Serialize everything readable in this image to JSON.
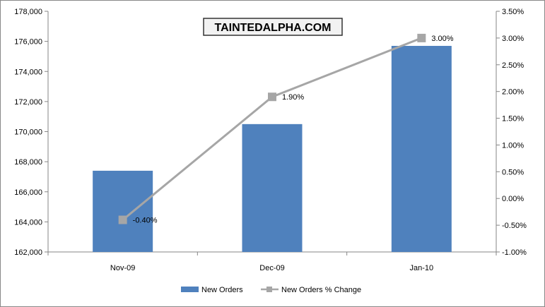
{
  "chart_data": {
    "type": "bar",
    "categories": [
      "Nov-09",
      "Dec-09",
      "Jan-10"
    ],
    "series": [
      {
        "name": "New Orders",
        "type": "bar",
        "axis": "left",
        "values": [
          167400,
          170500,
          175700
        ],
        "color": "#4f81bd"
      },
      {
        "name": "New Orders % Change",
        "type": "line",
        "axis": "right",
        "values": [
          -0.4,
          1.9,
          3.0
        ],
        "color": "#a6a6a6"
      }
    ],
    "data_labels": [
      "-0.40%",
      "1.90%",
      "3.00%"
    ],
    "left_axis": {
      "ylim": [
        162000,
        178000
      ],
      "ticks": [
        "162,000",
        "164,000",
        "166,000",
        "168,000",
        "170,000",
        "172,000",
        "174,000",
        "176,000",
        "178,000"
      ]
    },
    "right_axis": {
      "ylim": [
        -1.0,
        3.5
      ],
      "ticks": [
        "-1.00%",
        "-0.50%",
        "0.00%",
        "0.50%",
        "1.00%",
        "1.50%",
        "2.00%",
        "2.50%",
        "3.00%",
        "3.50%"
      ]
    },
    "legend_position": "bottom",
    "grid": false
  },
  "watermark": {
    "text": "TAINTEDALPHA.COM"
  }
}
